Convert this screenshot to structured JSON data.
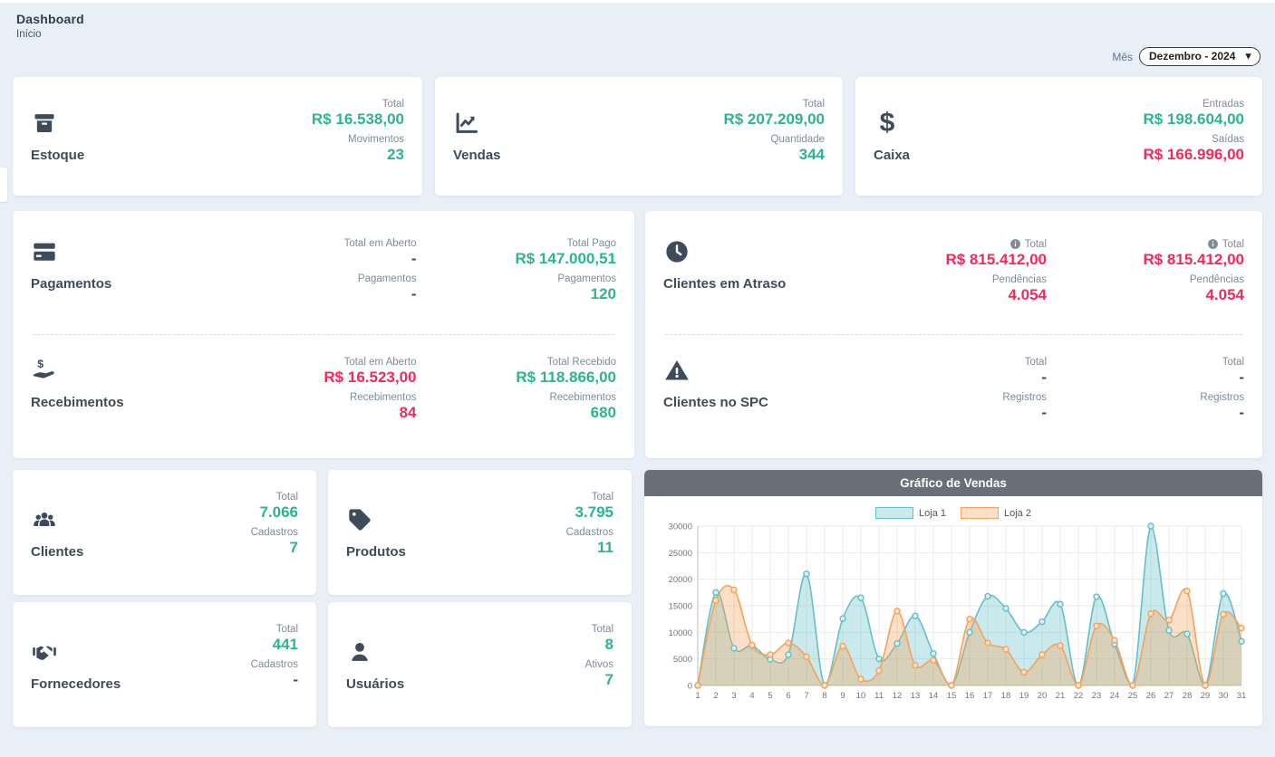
{
  "colors": {
    "bg": "#e8eff7",
    "card": "#ffffff",
    "green": "#2bb394",
    "red": "#ef2b5d",
    "dark": "#3e4b5b",
    "label": "#7e8a9a",
    "chart_header": "#686f78",
    "loja1": "#65bfc8",
    "loja1_fill": "rgba(101,191,200,0.35)",
    "loja2": "#f3a35b",
    "loja2_fill": "rgba(243,163,91,0.35)"
  },
  "header": {
    "title": "Dashboard",
    "breadcrumb": "Início"
  },
  "filter": {
    "label": "Mês",
    "selected": "Dezembro - 2024"
  },
  "cards": {
    "estoque": {
      "title": "Estoque",
      "stats": [
        {
          "label": "Total",
          "value": "R$ 16.538,00"
        },
        {
          "label": "Movimentos",
          "value": "23"
        }
      ]
    },
    "vendas": {
      "title": "Vendas",
      "stats": [
        {
          "label": "Total",
          "value": "R$ 207.209,00"
        },
        {
          "label": "Quantidade",
          "value": "344"
        }
      ]
    },
    "caixa": {
      "title": "Caixa",
      "stats": [
        {
          "label": "Entradas",
          "value": "R$ 198.604,00"
        },
        {
          "label": "Saídas",
          "value": "R$ 166.996,00"
        }
      ]
    },
    "pagamentos": {
      "title": "Pagamentos",
      "col1": [
        {
          "label": "Total em Aberto",
          "value": "-"
        },
        {
          "label": "Pagamentos",
          "value": "-"
        }
      ],
      "col2": [
        {
          "label": "Total Pago",
          "value": "R$ 147.000,51"
        },
        {
          "label": "Pagamentos",
          "value": "120"
        }
      ]
    },
    "recebimentos": {
      "title": "Recebimentos",
      "col1": [
        {
          "label": "Total em Aberto",
          "value": "R$ 16.523,00"
        },
        {
          "label": "Recebimentos",
          "value": "84"
        }
      ],
      "col2": [
        {
          "label": "Total Recebido",
          "value": "R$ 118.866,00"
        },
        {
          "label": "Recebimentos",
          "value": "680"
        }
      ]
    },
    "clientes_atraso": {
      "title": "Clientes em Atraso",
      "col1": [
        {
          "label": "Total",
          "value": "R$ 815.412,00"
        },
        {
          "label": "Pendências",
          "value": "4.054"
        }
      ],
      "col2": [
        {
          "label": "Total",
          "value": "R$ 815.412,00"
        },
        {
          "label": "Pendências",
          "value": "4.054"
        }
      ]
    },
    "clientes_spc": {
      "title": "Clientes no SPC",
      "col1": [
        {
          "label": "Total",
          "value": "-"
        },
        {
          "label": "Registros",
          "value": "-"
        }
      ],
      "col2": [
        {
          "label": "Total",
          "value": "-"
        },
        {
          "label": "Registros",
          "value": "-"
        }
      ]
    },
    "clientes": {
      "title": "Clientes",
      "stats": [
        {
          "label": "Total",
          "value": "7.066"
        },
        {
          "label": "Cadastros",
          "value": "7"
        }
      ]
    },
    "produtos": {
      "title": "Produtos",
      "stats": [
        {
          "label": "Total",
          "value": "3.795"
        },
        {
          "label": "Cadastros",
          "value": "11"
        }
      ]
    },
    "fornecedores": {
      "title": "Fornecedores",
      "stats": [
        {
          "label": "Total",
          "value": "441"
        },
        {
          "label": "Cadastros",
          "value": "-"
        }
      ]
    },
    "usuarios": {
      "title": "Usuários",
      "stats": [
        {
          "label": "Total",
          "value": "8"
        },
        {
          "label": "Ativos",
          "value": "7"
        }
      ]
    }
  },
  "chart_data": {
    "type": "area",
    "title": "Gráfico de Vendas",
    "x": [
      1,
      2,
      3,
      4,
      5,
      6,
      7,
      8,
      9,
      10,
      11,
      12,
      13,
      14,
      15,
      16,
      17,
      18,
      19,
      20,
      21,
      22,
      23,
      24,
      25,
      26,
      27,
      28,
      29,
      30,
      31
    ],
    "ylim": [
      0,
      30000
    ],
    "yticks": [
      0,
      5000,
      10000,
      15000,
      20000,
      25000,
      30000
    ],
    "grid": true,
    "legend_position": "top",
    "series": [
      {
        "name": "Loja 1",
        "color": "loja1",
        "fill": "loja1_fill",
        "marker_fill": "#d9eff1",
        "values": [
          0,
          17500,
          7000,
          7500,
          4900,
          5800,
          21000,
          0,
          12600,
          16500,
          5000,
          7900,
          13100,
          6000,
          0,
          10000,
          16800,
          14500,
          10000,
          12000,
          15300,
          0,
          16700,
          7800,
          0,
          30000,
          10400,
          9700,
          0,
          17300,
          8300
        ]
      },
      {
        "name": "Loja 2",
        "color": "loja2",
        "fill": "loja2_fill",
        "marker_fill": "#fde3c8",
        "values": [
          0,
          16000,
          18000,
          7600,
          5800,
          8000,
          5400,
          0,
          7400,
          1200,
          2800,
          14000,
          3800,
          4700,
          0,
          12500,
          8000,
          6800,
          2500,
          5800,
          7500,
          0,
          11200,
          8500,
          0,
          13500,
          12300,
          17800,
          0,
          13400,
          10800
        ]
      }
    ]
  }
}
